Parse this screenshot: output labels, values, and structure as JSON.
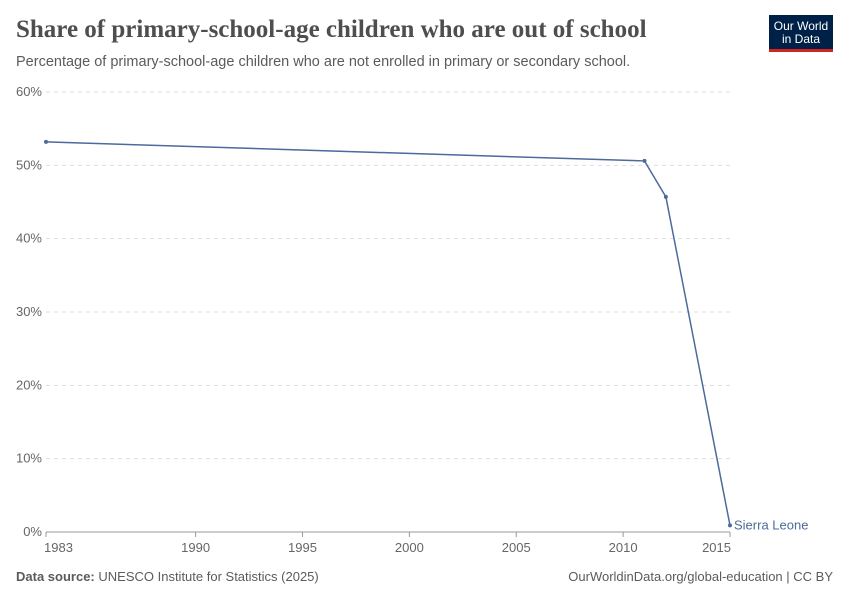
{
  "title": "Share of primary-school-age children who are out of school",
  "subtitle": "Percentage of primary-school-age children who are not enrolled in primary or secondary school.",
  "logo": {
    "line1": "Our World",
    "line2": "in Data",
    "bg": "#002147",
    "accent": "#ce261e"
  },
  "footer": {
    "source_label": "Data source:",
    "source": "UNESCO Institute for Statistics (2025)",
    "right": "OurWorldinData.org/global-education | CC BY"
  },
  "chart_data": {
    "type": "line",
    "title": "Share of primary-school-age children who are out of school",
    "xlabel": "",
    "ylabel": "",
    "xlim": [
      1983,
      2015
    ],
    "ylim": [
      0,
      60
    ],
    "grid": true,
    "x_ticks": [
      "1983",
      "1990",
      "1995",
      "2000",
      "2005",
      "2010",
      "2015"
    ],
    "x_tick_values": [
      1983,
      1990,
      1995,
      2000,
      2005,
      2010,
      2015
    ],
    "y_ticks": [
      "0%",
      "10%",
      "20%",
      "30%",
      "40%",
      "50%",
      "60%"
    ],
    "y_tick_values": [
      0,
      10,
      20,
      30,
      40,
      50,
      60
    ],
    "series": [
      {
        "name": "Sierra Leone",
        "color": "#4c6a9c",
        "x": [
          1983,
          2011,
          2012,
          2015
        ],
        "y": [
          53.2,
          50.6,
          45.7,
          0.9
        ]
      }
    ]
  }
}
